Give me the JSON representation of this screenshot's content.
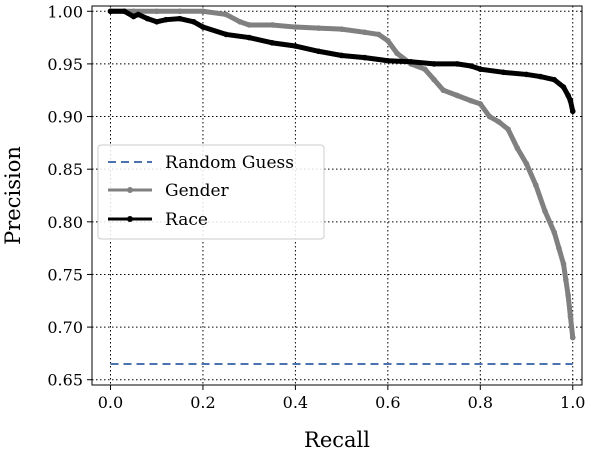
{
  "chart_data": {
    "type": "line",
    "title": "",
    "xlabel": "Recall",
    "ylabel": "Precision",
    "xlim": [
      -0.04,
      1.02
    ],
    "ylim": [
      0.645,
      1.005
    ],
    "x_ticks": [
      "0.0",
      "0.2",
      "0.4",
      "0.6",
      "0.8",
      "1.0"
    ],
    "y_ticks": [
      "0.65",
      "0.70",
      "0.75",
      "0.80",
      "0.85",
      "0.90",
      "0.95",
      "1.00"
    ],
    "grid": true,
    "grid_style": "dotted",
    "legend_position": "center-left",
    "series": [
      {
        "name": "Random Guess",
        "color": "#4c72b0",
        "style": "dashed",
        "x": [
          0.0,
          1.0
        ],
        "y": [
          0.665,
          0.665
        ]
      },
      {
        "name": "Gender",
        "color": "#808080",
        "style": "solid-marker",
        "x": [
          0.0,
          0.05,
          0.1,
          0.15,
          0.2,
          0.25,
          0.28,
          0.3,
          0.35,
          0.4,
          0.45,
          0.5,
          0.55,
          0.58,
          0.6,
          0.62,
          0.65,
          0.68,
          0.7,
          0.72,
          0.75,
          0.78,
          0.8,
          0.82,
          0.84,
          0.86,
          0.88,
          0.9,
          0.92,
          0.94,
          0.96,
          0.97,
          0.98,
          0.985,
          0.99,
          0.995,
          1.0
        ],
        "y": [
          1.0,
          1.0,
          1.0,
          1.0,
          1.0,
          0.997,
          0.99,
          0.987,
          0.987,
          0.985,
          0.984,
          0.983,
          0.98,
          0.978,
          0.972,
          0.96,
          0.95,
          0.945,
          0.935,
          0.925,
          0.92,
          0.915,
          0.912,
          0.9,
          0.895,
          0.888,
          0.87,
          0.855,
          0.835,
          0.81,
          0.79,
          0.775,
          0.76,
          0.745,
          0.73,
          0.71,
          0.69
        ]
      },
      {
        "name": "Race",
        "color": "#000000",
        "style": "solid-marker",
        "x": [
          0.0,
          0.03,
          0.05,
          0.06,
          0.08,
          0.1,
          0.12,
          0.15,
          0.18,
          0.2,
          0.25,
          0.3,
          0.35,
          0.4,
          0.45,
          0.5,
          0.55,
          0.6,
          0.65,
          0.7,
          0.75,
          0.78,
          0.8,
          0.85,
          0.9,
          0.93,
          0.96,
          0.98,
          0.99,
          0.995,
          1.0
        ],
        "y": [
          1.0,
          1.0,
          0.995,
          0.997,
          0.993,
          0.99,
          0.992,
          0.993,
          0.99,
          0.985,
          0.978,
          0.975,
          0.97,
          0.967,
          0.962,
          0.958,
          0.956,
          0.953,
          0.952,
          0.95,
          0.95,
          0.948,
          0.945,
          0.942,
          0.94,
          0.938,
          0.935,
          0.928,
          0.92,
          0.915,
          0.905
        ]
      }
    ]
  }
}
